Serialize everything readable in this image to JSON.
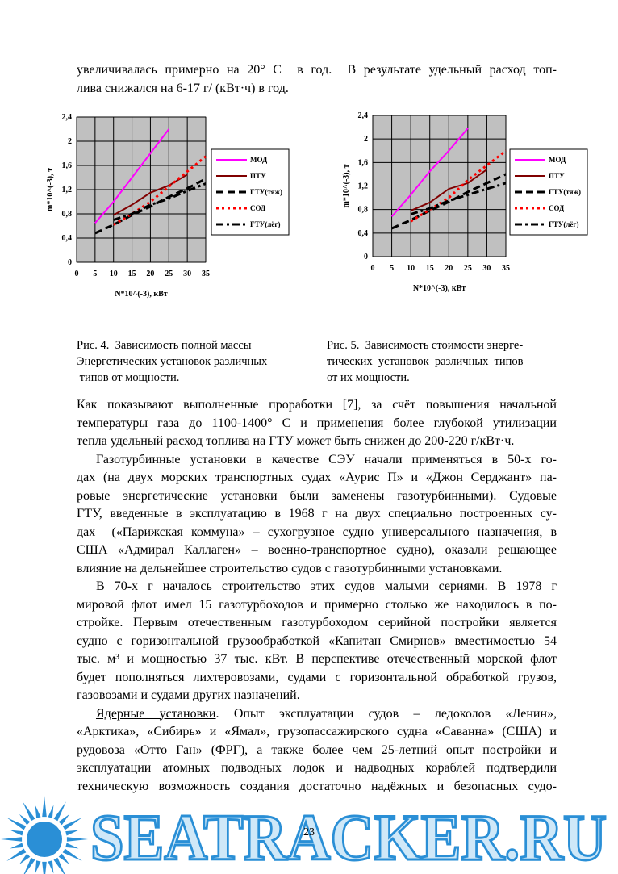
{
  "top_text": {
    "lines": [
      "увеличивалась примерно на 20° С  в год.  В результате удельный расход топ-",
      "лива снижался на 6-17 г/ (кВт·ч) в год."
    ]
  },
  "chart_data": [
    {
      "type": "line",
      "x_label": "N*10^(-3), кВт",
      "y_label": "m*10^(-3), т",
      "x": [
        5,
        10,
        15,
        20,
        25,
        30,
        35
      ],
      "xlim": [
        0,
        35
      ],
      "xticks": [
        0,
        5,
        10,
        15,
        20,
        25,
        30,
        35
      ],
      "ylim": [
        0,
        2.4
      ],
      "yticks": [
        0,
        {
          "value": 0.4,
          "label": "0,4"
        },
        {
          "value": 0.8,
          "label": "0,8"
        },
        {
          "value": 1.2,
          "label": "1,2"
        },
        {
          "value": 1.6,
          "label": "1,6"
        },
        2,
        {
          "value": 2.4,
          "label": "2,4"
        }
      ],
      "grid": true,
      "series": [
        {
          "name": "МОД",
          "color": "#ff00ff",
          "style": "solid",
          "values": [
            0.65,
            1.0,
            1.4,
            1.8,
            2.2,
            null,
            null
          ]
        },
        {
          "name": "ПТУ",
          "color": "#800000",
          "style": "solid",
          "values": [
            null,
            0.78,
            0.95,
            1.15,
            1.27,
            1.45,
            null
          ]
        },
        {
          "name": "ГТУ(тяж)",
          "color": "#000000",
          "style": "dashed",
          "values": [
            0.48,
            0.62,
            0.78,
            0.92,
            1.08,
            1.22,
            1.38
          ]
        },
        {
          "name": "СОД",
          "color": "#ff0000",
          "style": "dotted",
          "values": [
            null,
            0.62,
            0.8,
            1.0,
            1.25,
            1.5,
            1.75
          ]
        },
        {
          "name": "ГТУ(лёг)",
          "color": "#000000",
          "style": "dashdot",
          "values": [
            null,
            0.7,
            0.8,
            0.95,
            1.05,
            1.18,
            1.3
          ]
        }
      ]
    },
    {
      "type": "line",
      "x_label": "N*10^(-3), кВт",
      "y_label": "m*10^(-3), т",
      "x": [
        5,
        10,
        15,
        20,
        25,
        30,
        35
      ],
      "xlim": [
        0,
        35
      ],
      "xticks": [
        0,
        5,
        10,
        15,
        20,
        25,
        30,
        35
      ],
      "ylim": [
        0,
        2.4
      ],
      "yticks": [
        0,
        {
          "value": 0.4,
          "label": "0,4"
        },
        {
          "value": 0.8,
          "label": "0,8"
        },
        {
          "value": 1.2,
          "label": "1,2"
        },
        {
          "value": 1.6,
          "label": "1,6"
        },
        2,
        {
          "value": 2.4,
          "label": "2,4"
        }
      ],
      "grid": true,
      "series": [
        {
          "name": "МОД",
          "color": "#ff00ff",
          "style": "solid",
          "values": [
            0.68,
            1.05,
            1.45,
            1.8,
            2.18,
            null,
            null
          ]
        },
        {
          "name": "ПТУ",
          "color": "#800000",
          "style": "solid",
          "values": [
            null,
            0.78,
            0.92,
            1.15,
            1.25,
            1.48,
            null
          ]
        },
        {
          "name": "ГТУ(тяж)",
          "color": "#000000",
          "style": "dashed",
          "values": [
            0.48,
            0.62,
            0.78,
            0.93,
            1.1,
            1.25,
            1.4
          ]
        },
        {
          "name": "СОД",
          "color": "#ff0000",
          "style": "dotted",
          "values": [
            null,
            0.6,
            0.8,
            1.0,
            1.3,
            1.55,
            1.8
          ]
        },
        {
          "name": "ГТУ(лёг)",
          "color": "#000000",
          "style": "dashdot",
          "values": [
            null,
            0.72,
            0.82,
            0.95,
            1.05,
            1.15,
            1.25
          ]
        }
      ]
    }
  ],
  "captions": [
    {
      "lines": [
        "Рис. 4.  Зависимость полной массы",
        "Энергетических установок различных",
        " типов от мощности."
      ]
    },
    {
      "lines": [
        "Рис. 5.  Зависимость стоимости энерге-",
        "тических  установок  различных  типов",
        "от их мощности."
      ]
    }
  ],
  "paragraphs": [
    {
      "lines": [
        "Как показывают выполненные проработки [7], за счёт повышения начальной",
        "температуры газа до 1100-1400° С и применения более глубокой утилизации",
        "тепла удельный расход топлива на ГТУ может быть снижен до 200-220 г/кВт·ч."
      ]
    },
    {
      "lines": [
        "Газотурбинные установки в качестве СЭУ начали применяться в 50-х го-",
        "дах (на двух морских транспортных судах «Аурис П» и «Джон Серджант» па-",
        "ровые энергетические установки были заменены газотурбинными). Судовые",
        "ГТУ, введенные в эксплуатацию в 1968 г на двух специально построенных су-",
        "дах  («Парижская коммуна» – сухогрузное судно универсального назначения, в",
        "США «Адмирал Каллаген» – военно-транспортное судно), оказали решающее",
        "влияние на дельнейшее строительство судов с газотурбинными установками."
      ]
    },
    {
      "lines": [
        "В 70-х г началось строительство этих судов малыми сериями. В 1978 г",
        "мировой флот имел 15 газотурбоходов и примерно столько же находилось в по-",
        "стройке. Первым отечественным газотурбоходом серийной постройки является",
        "судно с горизонтальной грузообработкой «Капитан Смирнов» вместимостью 54",
        "тыс. м³ и мощностью 37 тыс. кВт. В перспективе отечественный морской флот",
        "будет пополняться лихтеровозами, судами с горизонтальной обработкой грузов,",
        "газовозами и судами других назначений."
      ]
    },
    {
      "lead": "Ядерные установки",
      "lines": [
        ". Опыт эксплуатации судов – ледоколов «Ленин»,",
        "«Арктика», «Сибирь» и «Ямал», грузопассажирского судна «Саванна» (США) и",
        "рудовоза «Отто Ган» (ФРГ), а также более чем 25-летний опыт постройки и",
        "эксплуатации атомных подводных лодок и надводных кораблей подтвердили",
        "техническую возможность создания достаточно надёжных и безопасных судо-"
      ]
    }
  ],
  "page_number": "23",
  "watermark": "SEATRACKER.RU"
}
